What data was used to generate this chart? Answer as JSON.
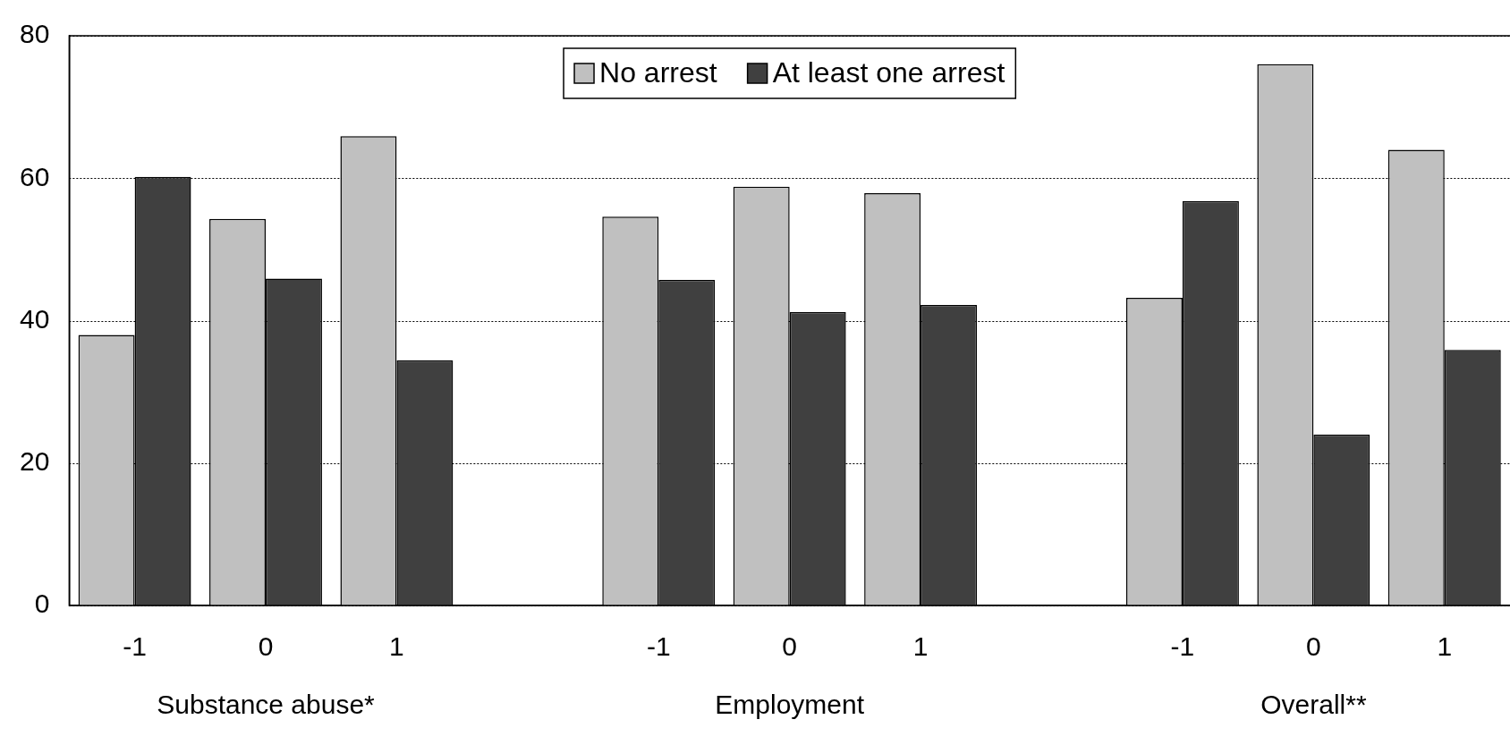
{
  "chart_data": {
    "type": "bar",
    "categories": [
      "-1",
      "0",
      "1",
      null,
      "-1",
      "0",
      "1",
      null,
      "-1",
      "0",
      "1"
    ],
    "series": [
      {
        "name": "No arrest",
        "color": "#c0c0c0",
        "values": [
          38,
          54.3,
          65.9,
          null,
          54.6,
          58.8,
          57.9,
          null,
          43.2,
          76,
          64
        ]
      },
      {
        "name": "At least one arrest",
        "color": "#404040",
        "values": [
          60.2,
          45.9,
          34.4,
          null,
          45.7,
          41.2,
          42.2,
          null,
          56.8,
          24,
          35.9
        ]
      }
    ],
    "annotations": [
      "Substance abuse*",
      "Employment",
      "Overall**"
    ],
    "ylim": [
      0,
      80
    ],
    "yticks": [
      0,
      20,
      40,
      60,
      80
    ],
    "grid": "y",
    "legend": "top"
  }
}
